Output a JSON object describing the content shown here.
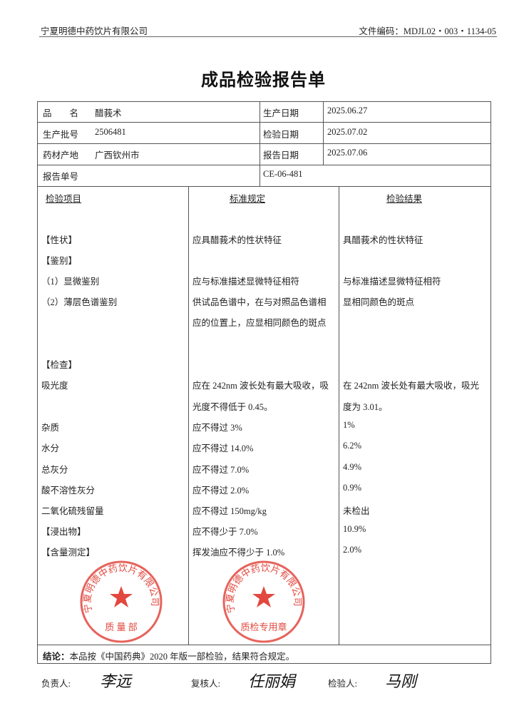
{
  "header": {
    "company": "宁夏明德中药饮片有限公司",
    "doc_code": "文件编码：MDJL02・003・1134-05"
  },
  "title": "成品检验报告单",
  "info": {
    "product_label": "品　　名",
    "product": "醋莪术",
    "batch_label": "生产批号",
    "batch": "2506481",
    "origin_label": "药材产地",
    "origin": "广西钦州市",
    "report_no_label": "报告单号",
    "report_no": "CE-06-481",
    "prod_date_label": "生产日期",
    "prod_date": "2025.06.27",
    "test_date_label": "检验日期",
    "test_date": "2025.07.02",
    "report_date_label": "报告日期",
    "report_date": "2025.07.06"
  },
  "columns": {
    "item": "检验项目",
    "standard": "标准规定",
    "result": "检验结果"
  },
  "rows": [
    {
      "item": "【性状】",
      "standard": "应具醋莪术的性状特征",
      "result": "具醋莪术的性状特征"
    },
    {
      "item": "【鉴别】",
      "standard": "",
      "result": ""
    },
    {
      "item": "（1）显微鉴别",
      "standard": "应与标准描述显微特征相符",
      "result": "与标准描述显微特征相符"
    },
    {
      "item": "（2）薄层色谱鉴别",
      "standard": "供试品色谱中，在与对照品色谱相",
      "result": "显相同颜色的斑点"
    },
    {
      "item": "",
      "standard": "应的位置上，应显相同颜色的斑点",
      "result": ""
    },
    {
      "item": "",
      "standard": "",
      "result": ""
    },
    {
      "item": "【检查】",
      "standard": "",
      "result": ""
    },
    {
      "item": "吸光度",
      "standard": "应在 242nm 波长处有最大吸收，吸",
      "result": "在 242nm 波长处有最大吸收，吸光"
    },
    {
      "item": "",
      "standard": "光度不得低于 0.45。",
      "result": "度为 3.01。"
    },
    {
      "item": "杂质",
      "standard": "应不得过 3%",
      "result": "1%"
    },
    {
      "item": "水分",
      "standard": "应不得过 14.0%",
      "result": "6.2%"
    },
    {
      "item": "总灰分",
      "standard": "应不得过 7.0%",
      "result": "4.9%"
    },
    {
      "item": "酸不溶性灰分",
      "standard": "应不得过 2.0%",
      "result": "0.9%"
    },
    {
      "item": "二氧化硫残留量",
      "standard": "应不得过 150mg/kg",
      "result": "未检出"
    },
    {
      "item": "【浸出物】",
      "standard": "应不得少于 7.0%",
      "result": "10.9%"
    },
    {
      "item": "【含量测定】",
      "standard": "挥发油应不得少于 1.0%",
      "result": "2.0%"
    }
  ],
  "conclusion": {
    "label": "结论：",
    "text": "本品按《中国药典》2020 年版一部检验，结果符合规定。"
  },
  "signatures": {
    "responsible_label": "负责人:",
    "responsible": "李远",
    "reviewer_label": "复核人:",
    "reviewer": "任丽娟",
    "inspector_label": "检验人:",
    "inspector": "马刚"
  },
  "stamps": {
    "quality_dept": {
      "ring": "宁夏明德中药饮片有限公司",
      "bottom": "质 量 部",
      "color": "#e2483f"
    },
    "qc_seal": {
      "ring": "宁夏明德中药饮片有限公司",
      "bottom": "质检专用章",
      "color": "#e2483f"
    }
  }
}
